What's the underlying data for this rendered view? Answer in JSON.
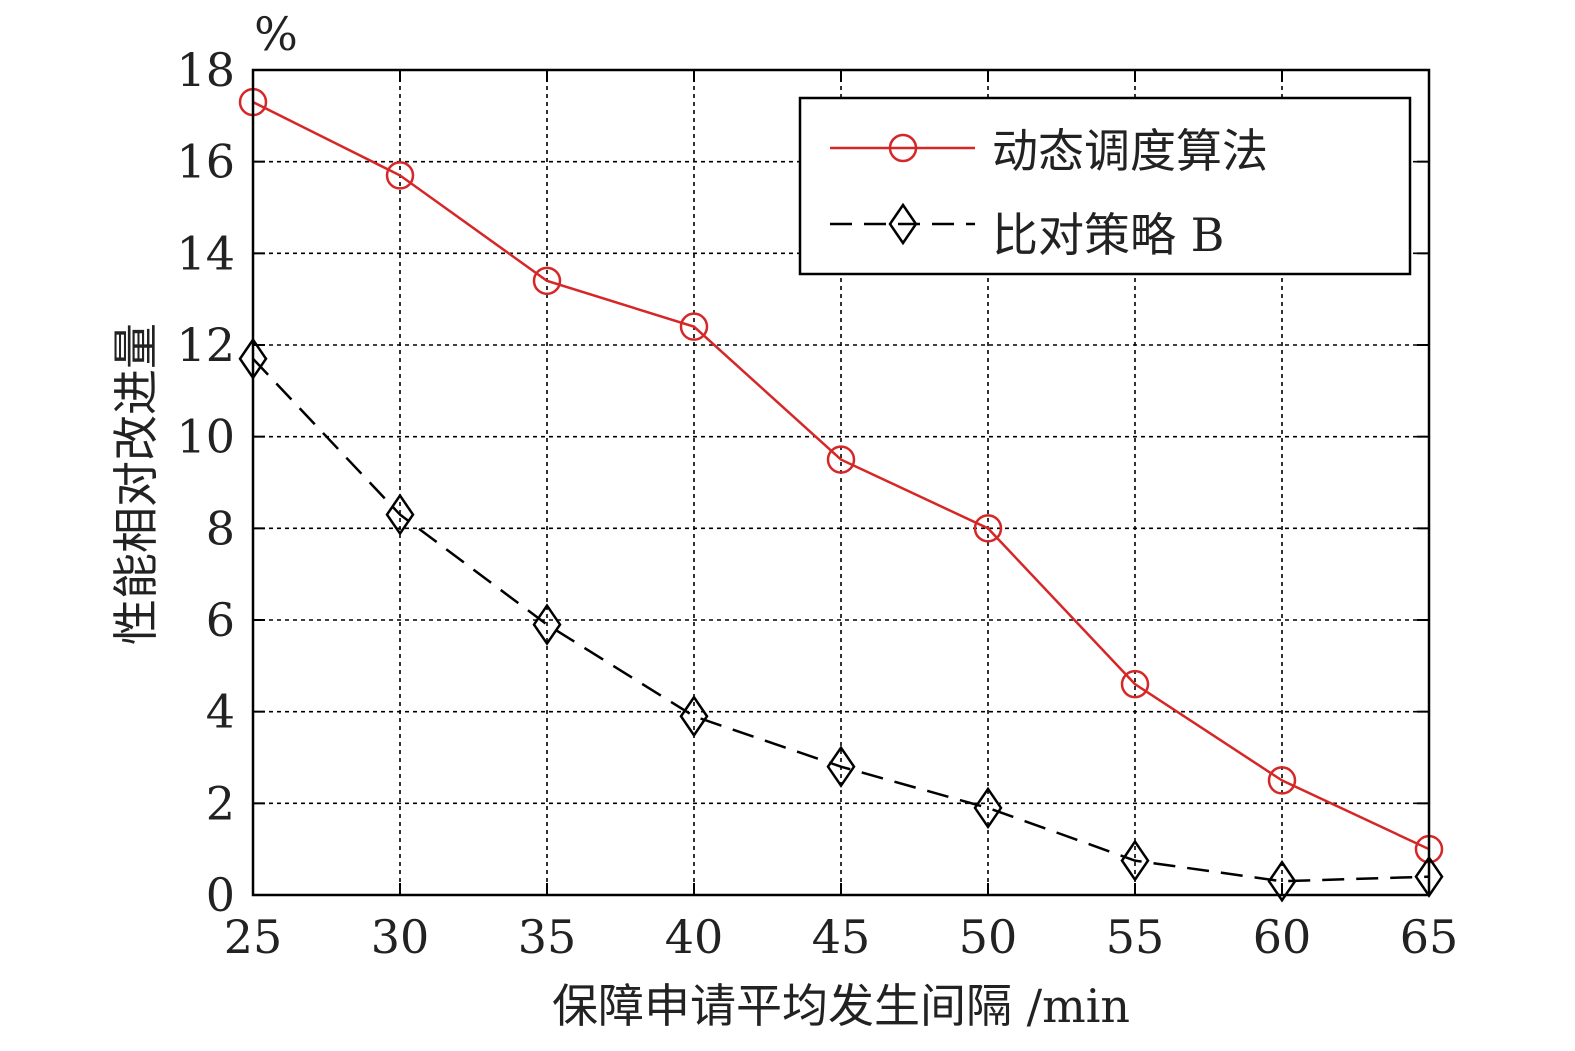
{
  "chart_data": {
    "type": "line",
    "unit_label": "%",
    "xlabel": "保障申请平均发生间隔 /min",
    "ylabel": "性能相对改进量",
    "x": [
      25,
      30,
      35,
      40,
      45,
      50,
      55,
      60,
      65
    ],
    "xlim": [
      25,
      65
    ],
    "ylim": [
      0,
      18
    ],
    "xticks": [
      "25",
      "30",
      "35",
      "40",
      "45",
      "50",
      "55",
      "60",
      "65"
    ],
    "yticks": [
      "0",
      "2",
      "4",
      "6",
      "8",
      "10",
      "12",
      "14",
      "16",
      "18"
    ],
    "grid": true,
    "legend_position": "top-right",
    "series": [
      {
        "name": "动态调度算法",
        "color": "#d62728",
        "marker": "circle",
        "line": "solid",
        "values": [
          17.3,
          15.7,
          13.4,
          12.4,
          9.5,
          8.0,
          4.6,
          2.5,
          1.0
        ]
      },
      {
        "name": "比对策略 B",
        "color": "#000000",
        "marker": "diamond",
        "line": "dashed",
        "values": [
          11.7,
          8.3,
          5.9,
          3.9,
          2.8,
          1.9,
          0.75,
          0.3,
          0.4
        ]
      }
    ]
  }
}
